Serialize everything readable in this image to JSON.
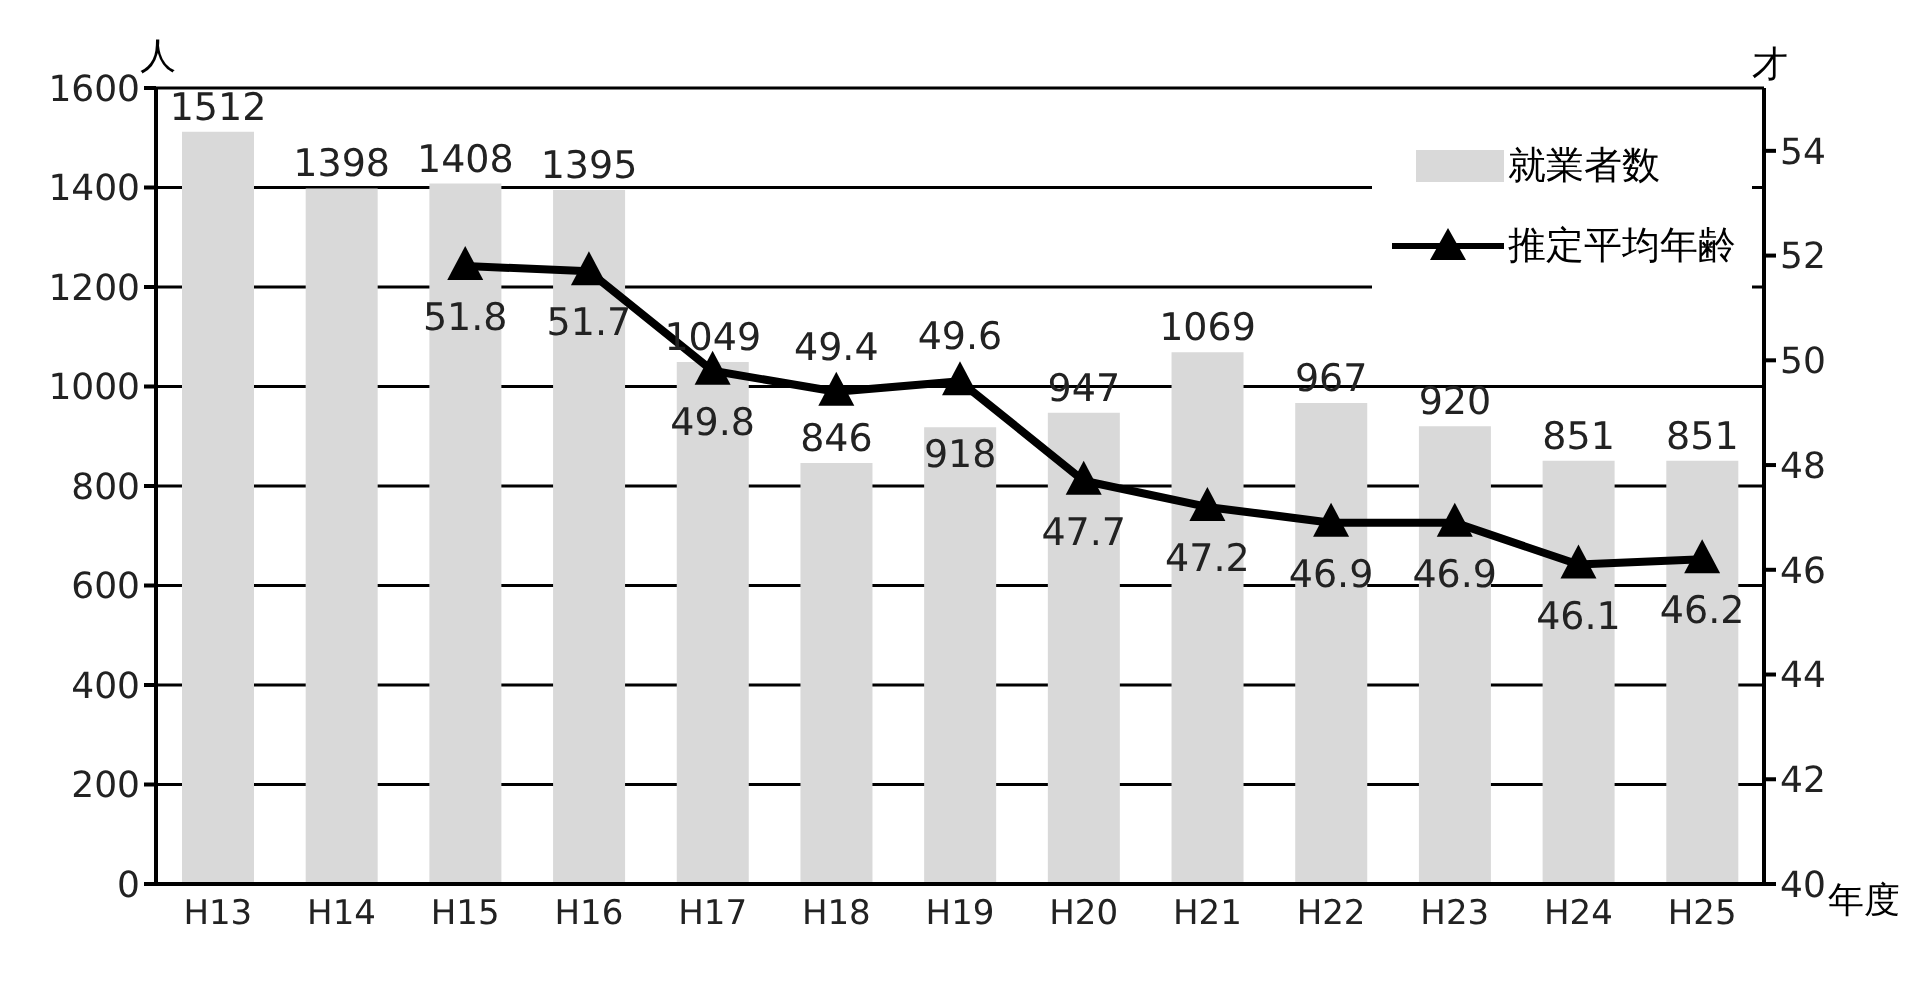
{
  "chart_data": {
    "type": "bar",
    "xlabel": "年度",
    "ylabel": "人",
    "y2label": "才",
    "categories": [
      "H13",
      "H14",
      "H15",
      "H16",
      "H17",
      "H18",
      "H19",
      "H20",
      "H21",
      "H22",
      "H23",
      "H24",
      "H25"
    ],
    "series": [
      {
        "name": "就業者数",
        "color": "#d9d9d9",
        "values": [
          1512,
          1398,
          1408,
          1395,
          1049,
          846,
          918,
          947,
          1069,
          967,
          920,
          851,
          851
        ]
      },
      {
        "name": "推定平均年齢",
        "type": "line",
        "axis": "y2",
        "color": "#000000",
        "marker": "triangle",
        "values": [
          null,
          null,
          51.8,
          51.7,
          49.8,
          49.4,
          49.6,
          47.7,
          47.2,
          46.9,
          46.9,
          46.1,
          46.2
        ]
      }
    ],
    "ylim": [
      0,
      1600
    ],
    "yticks": [
      0,
      200,
      400,
      600,
      800,
      1000,
      1200,
      1400,
      1600
    ],
    "y2lim": [
      40,
      55.2
    ],
    "y2ticks": [
      40,
      42,
      44,
      46,
      48,
      50,
      52,
      54
    ],
    "grid": "y",
    "legend": "top right",
    "data_labels": true
  }
}
